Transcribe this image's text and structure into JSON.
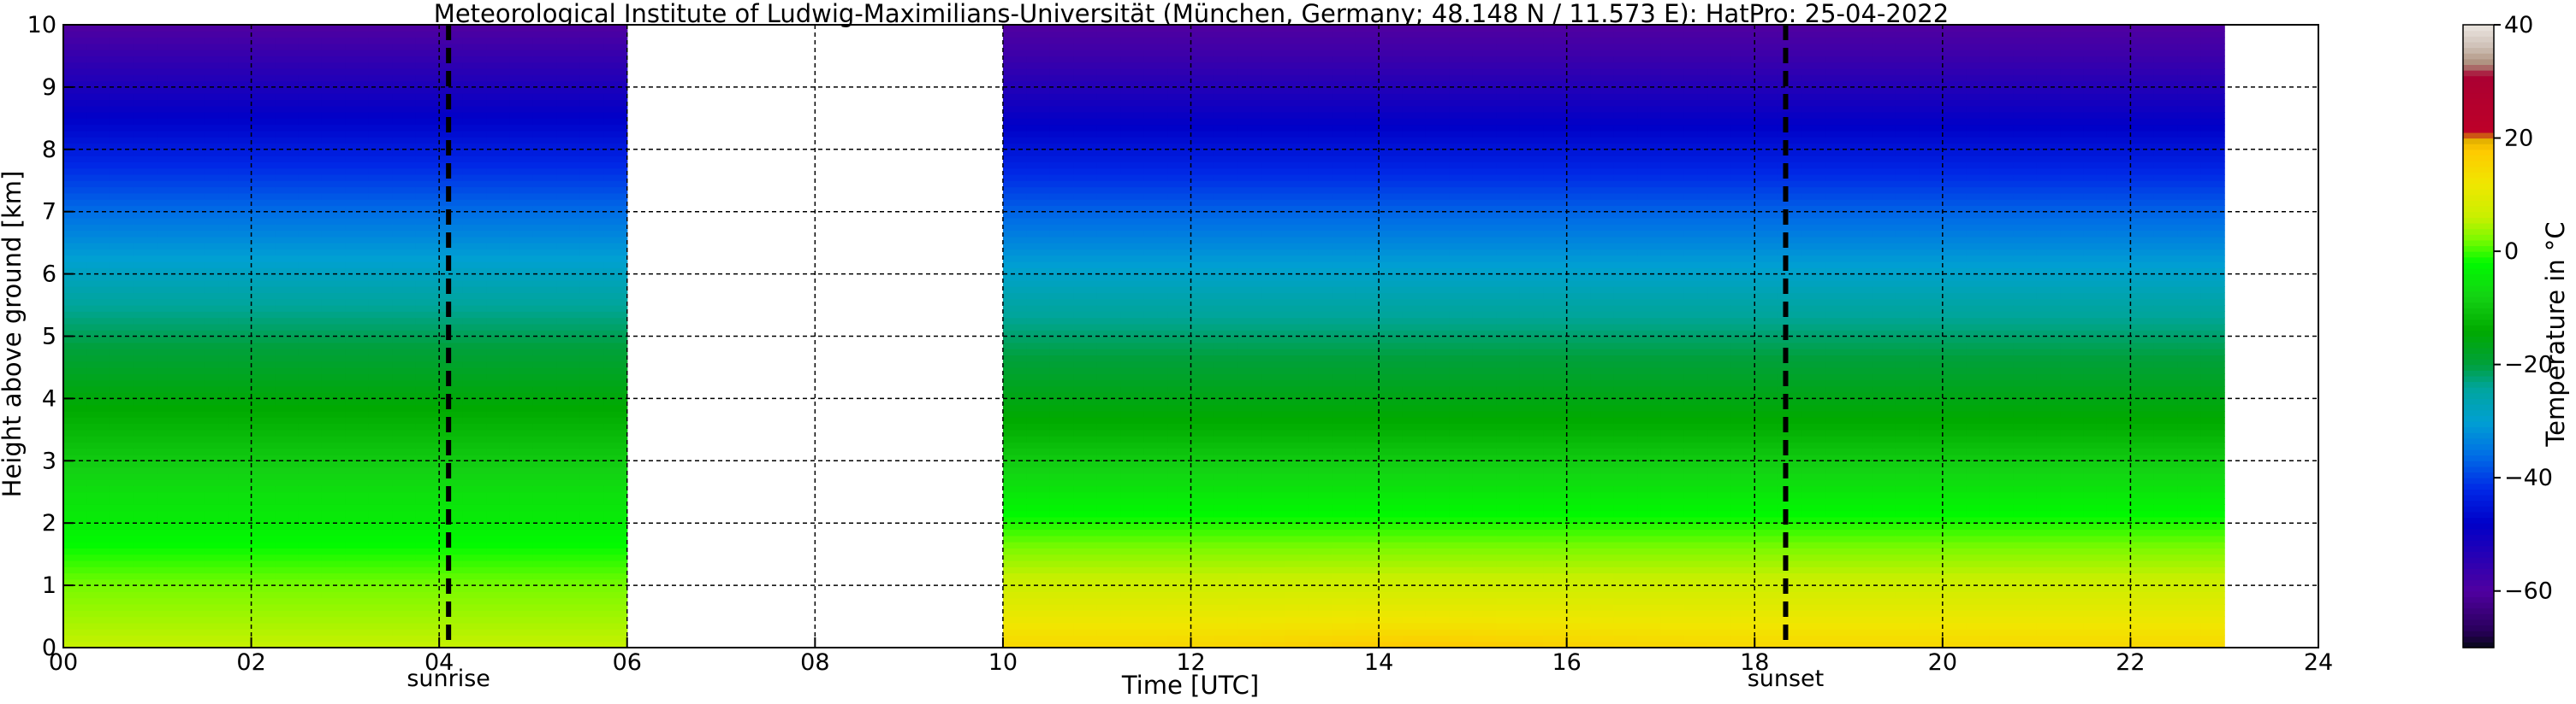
{
  "title": "Meteorological Institute of Ludwig-Maximilians-Universität (München, Germany; 48.148 N / 11.573 E):    HatPro: 25-04-2022",
  "chart_data": {
    "type": "heatmap",
    "xlabel": "Time [UTC]",
    "ylabel": "Height above ground [km]",
    "xlim": [
      0,
      24
    ],
    "ylim": [
      0,
      10
    ],
    "x_ticks": [
      0,
      2,
      4,
      6,
      8,
      10,
      12,
      14,
      16,
      18,
      20,
      22,
      24
    ],
    "x_tick_labels": [
      "00",
      "02",
      "04",
      "06",
      "08",
      "10",
      "12",
      "14",
      "16",
      "18",
      "20",
      "22",
      "24"
    ],
    "y_ticks": [
      0,
      1,
      2,
      3,
      4,
      5,
      6,
      7,
      8,
      9,
      10
    ],
    "y_tick_labels": [
      "0",
      "1",
      "2",
      "3",
      "4",
      "5",
      "6",
      "7",
      "8",
      "9",
      "10"
    ],
    "grid": true,
    "data_segments": [
      {
        "start": 0,
        "end": 6
      },
      {
        "start": 10,
        "end": 23
      }
    ],
    "vertical_markers": [
      {
        "label": "sunrise",
        "x": 4.1
      },
      {
        "label": "sunset",
        "x": 18.33
      }
    ],
    "temperature_profile": {
      "unit": "°C",
      "heights_km": [
        0,
        0.5,
        1,
        1.5,
        2,
        2.5,
        3,
        3.5,
        4,
        4.5,
        5,
        5.5,
        6,
        6.5,
        7,
        7.5,
        8,
        8.5,
        9,
        9.5,
        10
      ],
      "morning_values": [
        6,
        4,
        2,
        -1,
        -4,
        -6,
        -9,
        -12,
        -15,
        -18,
        -21,
        -24,
        -28,
        -32,
        -36,
        -40,
        -44,
        -48,
        -52,
        -56,
        -60
      ],
      "afternoon_values": [
        15,
        11,
        7,
        3,
        -1,
        -5,
        -9,
        -13,
        -16,
        -19,
        -22,
        -25,
        -29,
        -33,
        -37,
        -41,
        -45,
        -49,
        -53,
        -57,
        -60
      ],
      "warm_core": {
        "x_center": 14.5,
        "value_at_ground": 18
      }
    },
    "colorbar": {
      "label": "Temperature in °C",
      "min": -70,
      "max": 40,
      "ticks": [
        -60,
        -40,
        -20,
        0,
        20,
        40
      ],
      "tick_labels": [
        "−60",
        "−40",
        "−20",
        "0",
        "20",
        "40"
      ]
    }
  }
}
